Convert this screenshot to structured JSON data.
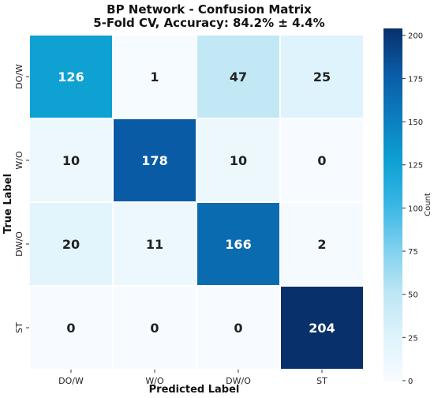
{
  "chart_data": {
    "type": "heatmap",
    "title": "BP Network - Confusion Matrix",
    "subtitle": "5-Fold CV, Accuracy: 84.2% ± 4.4%",
    "xlabel": "Predicted Label",
    "ylabel": "True Label",
    "x_categories": [
      "DO/W",
      "W/O",
      "DW/O",
      "ST"
    ],
    "y_categories": [
      "DO/W",
      "W/O",
      "DW/O",
      "ST"
    ],
    "matrix": [
      [
        126,
        1,
        47,
        25
      ],
      [
        10,
        178,
        10,
        0
      ],
      [
        20,
        11,
        166,
        2
      ],
      [
        0,
        0,
        0,
        204
      ]
    ],
    "colorbar": {
      "label": "Count",
      "min": 0,
      "max": 204,
      "ticks": [
        0,
        25,
        50,
        75,
        100,
        125,
        150,
        175,
        200
      ]
    },
    "colormap": [
      "#f7fbff",
      "#def3fb",
      "#bde6f4",
      "#7fd0ee",
      "#38b6e4",
      "#0ea0d2",
      "#0c7cbd",
      "#0a5aa5",
      "#08306b"
    ],
    "grid": false
  }
}
